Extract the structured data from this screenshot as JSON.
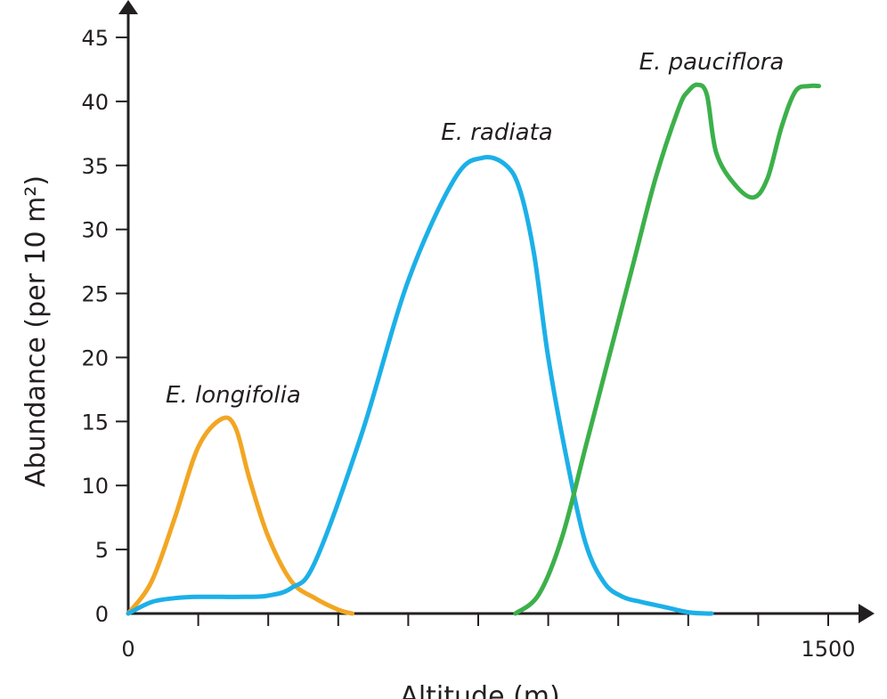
{
  "chart_data": {
    "type": "line",
    "title": "",
    "xlabel": "Altitude (m)",
    "ylabel": "Abundance (per 10 m²)",
    "xlim": [
      0,
      1500
    ],
    "ylim": [
      0,
      45
    ],
    "x_ticks": [
      0,
      150,
      300,
      450,
      600,
      750,
      900,
      1050,
      1200,
      1350,
      1500
    ],
    "x_tick_labels": [
      "0",
      "",
      "",
      "",
      "",
      "",
      "",
      "",
      "",
      "",
      "1500"
    ],
    "y_ticks": [
      0,
      5,
      10,
      15,
      20,
      25,
      30,
      35,
      40,
      45
    ],
    "y_tick_labels": [
      "0",
      "5",
      "10",
      "15",
      "20",
      "25",
      "30",
      "35",
      "40",
      "45"
    ],
    "grid": false,
    "legend": "none",
    "series": [
      {
        "name": "E. longifolia",
        "color": "#f2a623",
        "x": [
          0,
          50,
          100,
          150,
          200,
          230,
          260,
          300,
          350,
          400,
          450,
          480
        ],
        "y": [
          0,
          2.5,
          7.5,
          13,
          15.2,
          14.5,
          10.5,
          6,
          2.5,
          1.2,
          0.3,
          0
        ]
      },
      {
        "name": "E. radiata",
        "color": "#1cb0e8",
        "x": [
          0,
          50,
          100,
          150,
          250,
          300,
          350,
          400,
          500,
          600,
          700,
          760,
          810,
          840,
          870,
          900,
          940,
          980,
          1020,
          1060,
          1100,
          1150,
          1200,
          1240,
          1250
        ],
        "y": [
          0,
          0.9,
          1.2,
          1.3,
          1.3,
          1.4,
          2,
          4,
          14,
          26,
          34,
          35.6,
          35,
          33,
          28,
          20,
          12,
          5.5,
          2.4,
          1.3,
          0.9,
          0.5,
          0.1,
          0,
          0
        ]
      },
      {
        "name": "E. pauciflora",
        "color": "#3cb04a",
        "x": [
          830,
          880,
          930,
          980,
          1030,
          1080,
          1130,
          1180,
          1200,
          1220,
          1240,
          1260,
          1300,
          1340,
          1370,
          1400,
          1430,
          1460,
          1480
        ],
        "y": [
          0,
          1.5,
          6,
          13,
          20,
          27,
          34,
          39.5,
          40.8,
          41.3,
          40.5,
          36,
          33.5,
          32.5,
          34,
          38,
          40.8,
          41.2,
          41.2
        ]
      }
    ],
    "annotations": [
      {
        "text": "E. longifolia",
        "x": 225,
        "y": 16.5
      },
      {
        "text": "E. radiata",
        "x": 790,
        "y": 37
      },
      {
        "text": "E. pauciflora",
        "x": 1250,
        "y": 42.5
      }
    ]
  }
}
